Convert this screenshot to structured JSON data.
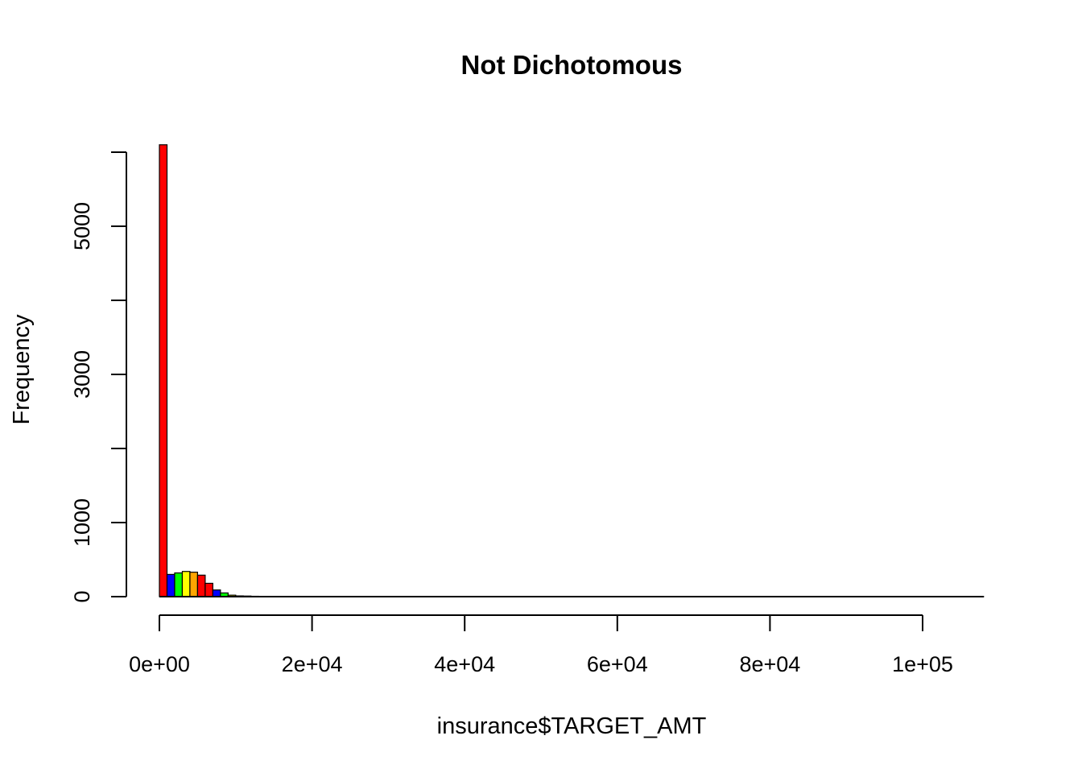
{
  "chart_data": {
    "type": "bar",
    "title": "Not Dichotomous",
    "xlabel": "insurance$TARGET_AMT",
    "ylabel": "Frequency",
    "bin_width": 1000,
    "bin_start": 0,
    "values": [
      6100,
      300,
      320,
      340,
      330,
      290,
      180,
      90,
      50,
      20,
      10,
      8,
      5,
      4,
      3,
      2,
      3,
      2,
      4,
      2,
      1,
      1,
      1,
      1,
      1,
      0,
      1,
      0,
      1,
      0,
      0,
      0,
      0,
      0,
      1,
      0,
      0,
      0,
      0,
      0,
      0,
      0,
      0,
      0,
      0,
      0,
      0,
      0,
      0,
      0,
      0,
      0,
      0,
      0,
      0,
      0,
      0,
      0,
      0,
      0,
      0,
      0,
      0,
      0,
      0,
      0,
      0,
      0,
      0,
      0,
      0,
      0,
      0,
      0,
      0,
      0,
      0,
      0,
      0,
      0,
      0,
      0,
      0,
      0,
      0,
      0,
      0,
      0,
      0,
      0,
      0,
      0,
      0,
      0,
      0,
      0,
      0,
      0,
      0,
      0,
      0,
      0,
      0,
      0,
      0,
      0,
      0,
      1
    ],
    "bar_colors": [
      "#ff0000",
      "#0000ff",
      "#00ff00",
      "#ffff00",
      "#ffa500",
      "#ff0000"
    ],
    "xticks": [
      0,
      20000,
      40000,
      60000,
      80000,
      100000
    ],
    "xtick_labels": [
      "0e+00",
      "2e+04",
      "4e+04",
      "6e+04",
      "8e+04",
      "1e+05"
    ],
    "yticks": [
      0,
      1000,
      2000,
      3000,
      4000,
      5000,
      6000
    ],
    "ytick_labels": [
      "0",
      "1000",
      "",
      "3000",
      "",
      "5000",
      ""
    ],
    "xlim": [
      0,
      108000
    ],
    "ylim": [
      0,
      6100
    ],
    "grid": false,
    "legend": false
  }
}
